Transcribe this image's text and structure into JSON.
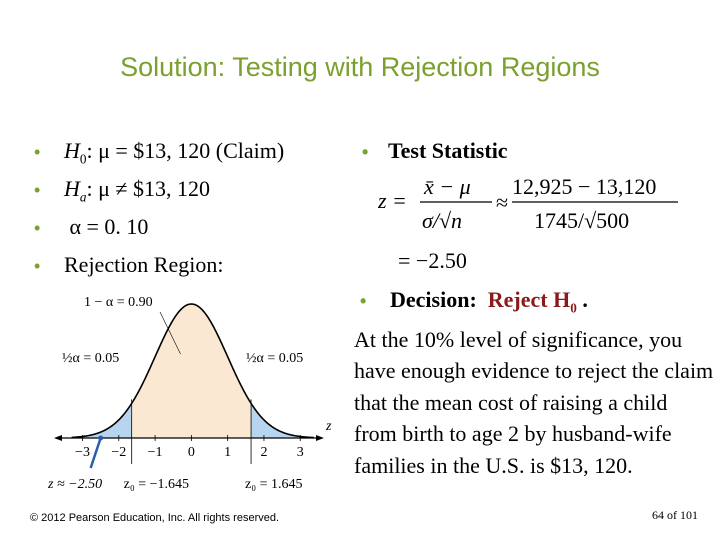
{
  "slide": {
    "title": "Solution: Testing with Rejection Regions",
    "bullets": {
      "h0_label": "H",
      "h0_sub": "0",
      "h0_text": ":  μ = $13, 120  (Claim)",
      "ha_label": "H",
      "ha_sub": "a",
      "ha_text": ":  μ ≠ $13, 120",
      "alpha_text": "α =  0. 10",
      "region_text": "Rejection Region:"
    },
    "test_statistic": {
      "heading": "Test Statistic",
      "z_label": "z =",
      "numerator_symbolic": "x̄ − μ",
      "denominator_symbolic": "σ/√n",
      "approx": "≈",
      "numerator_values": "12,925 − 13,120",
      "denominator_values": "1745/√500",
      "result": "= −2.50"
    },
    "decision": {
      "heading": "Decision:",
      "verdict": "Reject H",
      "verdict_sub": "0",
      "verdict_end": " .",
      "body": "At the 10% level of significance, you have enough evidence to reject the claim that the mean cost of raising a child from birth to age 2 by husband-wife families in the U.S. is $13, 120."
    },
    "footer": "© 2012 Pearson Education, Inc. All rights reserved.",
    "page_number": "64 of 101"
  },
  "chart_data": {
    "type": "area",
    "x_axis_label": "z",
    "ticks": [
      "−3",
      "−2",
      "−1",
      "0",
      "1",
      "2",
      "3"
    ],
    "xlim": [
      -3.4,
      3.6
    ],
    "critical_values": [
      -1.645,
      1.645
    ],
    "center_label": "1 − α = 0.90",
    "left_tail_label": "½α = 0.05",
    "right_tail_label": "½α = 0.05",
    "z0_left_label": "z₀ = −1.645",
    "z0_right_label": "z₀ = 1.645",
    "test_stat_label": "z ≈ −2.50",
    "test_stat_value": -2.5,
    "colors": {
      "center": "#fbe8d2",
      "tails": "#b7d5ef",
      "curve": "#000000",
      "marker": "#2a5fa5"
    }
  }
}
